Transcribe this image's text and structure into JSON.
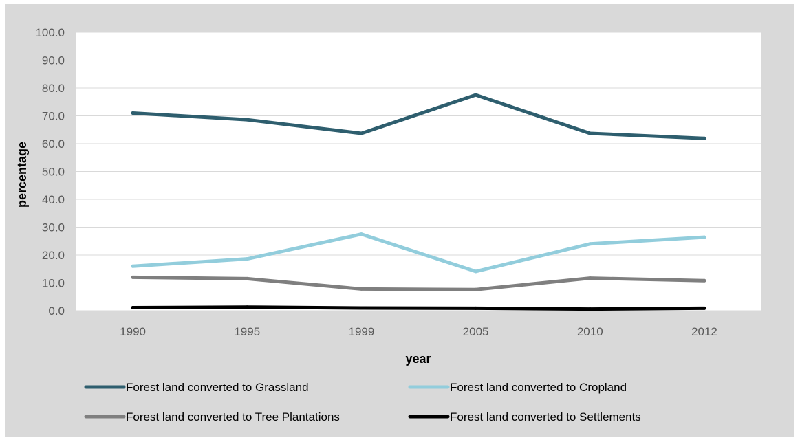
{
  "chart_data": {
    "type": "line",
    "title": "",
    "xlabel": "year",
    "ylabel": "percentage",
    "categories": [
      "1990",
      "1995",
      "1999",
      "2005",
      "2010",
      "2012"
    ],
    "ylim": [
      0,
      100
    ],
    "ytick_labels": [
      "0.0",
      "10.0",
      "20.0",
      "30.0",
      "40.0",
      "50.0",
      "60.0",
      "70.0",
      "80.0",
      "90.0",
      "100.0"
    ],
    "grid": true,
    "legend_position": "bottom",
    "series": [
      {
        "name": "Forest land converted to Grassland",
        "color": "#2e5e6e",
        "values": [
          71.0,
          68.6,
          63.7,
          77.5,
          63.7,
          61.9
        ]
      },
      {
        "name": "Forest land converted to Cropland",
        "color": "#92cddc",
        "values": [
          16.0,
          18.6,
          27.5,
          14.1,
          24.0,
          26.4
        ]
      },
      {
        "name": "Forest land converted to Tree Plantations",
        "color": "#7f7f7f",
        "values": [
          12.0,
          11.5,
          7.8,
          7.6,
          11.7,
          10.8
        ]
      },
      {
        "name": "Forest land converted to Settlements",
        "color": "#000000",
        "values": [
          1.1,
          1.3,
          1.0,
          0.9,
          0.6,
          0.9
        ]
      }
    ]
  }
}
